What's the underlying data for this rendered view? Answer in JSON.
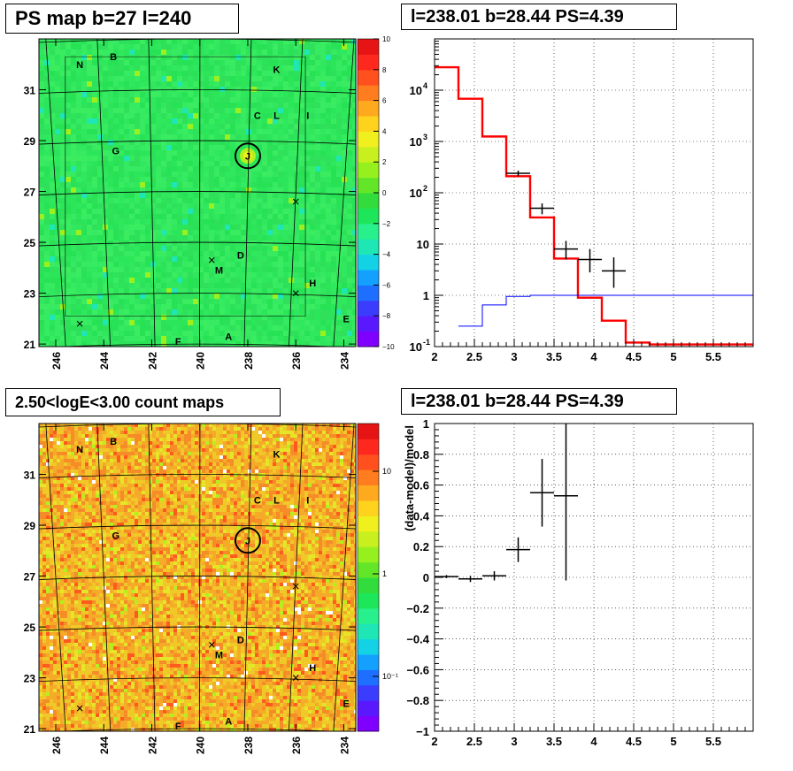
{
  "panels": {
    "ps_map": {
      "title": "PS map b=27 l=240",
      "x_ticks": [
        "246",
        "244",
        "242",
        "240",
        "238",
        "236",
        "234"
      ],
      "y_ticks": [
        "21",
        "23",
        "25",
        "27",
        "29",
        "31"
      ],
      "colorbar_ticks": [
        "10",
        "8",
        "6",
        "4",
        "2",
        "0",
        "−2",
        "−4",
        "−6",
        "−8",
        "−10"
      ],
      "source_labels": [
        "N",
        "B",
        "K",
        "C",
        "L",
        "I",
        "G",
        "J",
        "D",
        "M",
        "H",
        "E",
        "F",
        "A"
      ]
    },
    "count_map": {
      "title": "2.50<logE<3.00 count maps",
      "x_ticks": [
        "246",
        "244",
        "242",
        "240",
        "238",
        "236",
        "234"
      ],
      "y_ticks": [
        "21",
        "23",
        "25",
        "27",
        "29",
        "31"
      ],
      "colorbar_ticks": [
        "10",
        "1",
        "10⁻¹"
      ],
      "source_labels": [
        "N",
        "B",
        "K",
        "C",
        "L",
        "I",
        "G",
        "J",
        "D",
        "M",
        "H",
        "E",
        "F",
        "A"
      ]
    },
    "spectrum": {
      "title": "l=238.01 b=28.44 PS=4.39"
    },
    "residual": {
      "title": "l=238.01 b=28.44 PS=4.39",
      "ylabel": "(data-model)/model"
    }
  },
  "chart_data": [
    {
      "type": "heatmap",
      "title": "PS map b=27 l=240",
      "xlabel": "",
      "ylabel": "",
      "xlim": [
        246.7,
        233.5
      ],
      "ylim": [
        20.9,
        33.0
      ],
      "color_range": [
        -10,
        10
      ],
      "x_ticks": [
        246,
        244,
        242,
        240,
        238,
        236,
        234
      ],
      "y_ticks": [
        21,
        23,
        25,
        27,
        29,
        31
      ],
      "sources": [
        {
          "name": "N",
          "l": 245.0,
          "b": 32.0
        },
        {
          "name": "B",
          "l": 243.6,
          "b": 32.3
        },
        {
          "name": "K",
          "l": 236.8,
          "b": 31.8
        },
        {
          "name": "C",
          "l": 237.6,
          "b": 30.0
        },
        {
          "name": "L",
          "l": 236.8,
          "b": 30.0
        },
        {
          "name": "I",
          "l": 235.5,
          "b": 30.0
        },
        {
          "name": "G",
          "l": 243.5,
          "b": 28.6
        },
        {
          "name": "J",
          "l": 238.0,
          "b": 28.4
        },
        {
          "name": "D",
          "l": 238.3,
          "b": 24.5
        },
        {
          "name": "M",
          "l": 239.2,
          "b": 23.9
        },
        {
          "name": "H",
          "l": 235.3,
          "b": 23.4
        },
        {
          "name": "E",
          "l": 233.9,
          "b": 22.0
        },
        {
          "name": "F",
          "l": 240.9,
          "b": 21.1
        },
        {
          "name": "A",
          "l": 238.8,
          "b": 21.3
        }
      ],
      "grid": true
    },
    {
      "type": "line",
      "title": "l=238.01 b=28.44 PS=4.39",
      "xlabel": "",
      "ylabel": "",
      "xlim": [
        2,
        6
      ],
      "ylim": [
        0.1,
        100000
      ],
      "y_scale": "log",
      "x_ticks": [
        2,
        2.5,
        3,
        3.5,
        4,
        4.5,
        5,
        5.5
      ],
      "series": [
        {
          "style": "histogram",
          "color": "#ff0000",
          "edges": [
            2.0,
            2.3,
            2.6,
            2.9,
            3.2,
            3.5,
            3.8,
            4.1,
            4.4,
            4.7,
            5.0,
            6.0
          ],
          "values": [
            28000,
            6800,
            1250,
            210,
            33,
            5.2,
            0.9,
            0.32,
            0.12,
            0.11,
            0.11
          ]
        },
        {
          "style": "histogram",
          "color": "#0000ff",
          "edges": [
            2.3,
            2.6,
            2.9,
            3.2,
            3.5,
            3.8,
            6.0
          ],
          "values": [
            0.25,
            0.65,
            0.95,
            1.0,
            1.0,
            1.0
          ]
        },
        {
          "style": "errorbars",
          "color": "#000000",
          "x": [
            3.05,
            3.35,
            3.65,
            3.95,
            4.25
          ],
          "xerr": [
            0.15,
            0.15,
            0.15,
            0.15,
            0.15
          ],
          "y": [
            240,
            50,
            8,
            5,
            3
          ],
          "yerr_low": [
            30,
            12,
            3,
            2.2,
            1.6
          ],
          "yerr_high": [
            30,
            12,
            3.5,
            3,
            2.5
          ]
        }
      ],
      "grid": true
    },
    {
      "type": "scatter",
      "title": "l=238.01 b=28.44 PS=4.39",
      "xlabel": "",
      "ylabel": "(data-model)/model",
      "xlim": [
        2,
        6
      ],
      "ylim": [
        -1,
        1
      ],
      "x_ticks": [
        2,
        2.5,
        3,
        3.5,
        4,
        4.5,
        5,
        5.5
      ],
      "y_ticks": [
        -1,
        -0.8,
        -0.6,
        -0.4,
        -0.2,
        0,
        0.2,
        0.4,
        0.6,
        0.8,
        1
      ],
      "series": [
        {
          "color": "#000000",
          "x": [
            2.15,
            2.45,
            2.75,
            3.05,
            3.35,
            3.65
          ],
          "xerr": [
            0.15,
            0.15,
            0.15,
            0.15,
            0.15,
            0.15
          ],
          "y": [
            0.005,
            -0.01,
            0.01,
            0.18,
            0.55,
            0.53
          ],
          "yerr": [
            0.01,
            0.02,
            0.03,
            0.08,
            0.22,
            0.55
          ]
        }
      ],
      "grid": true
    }
  ]
}
